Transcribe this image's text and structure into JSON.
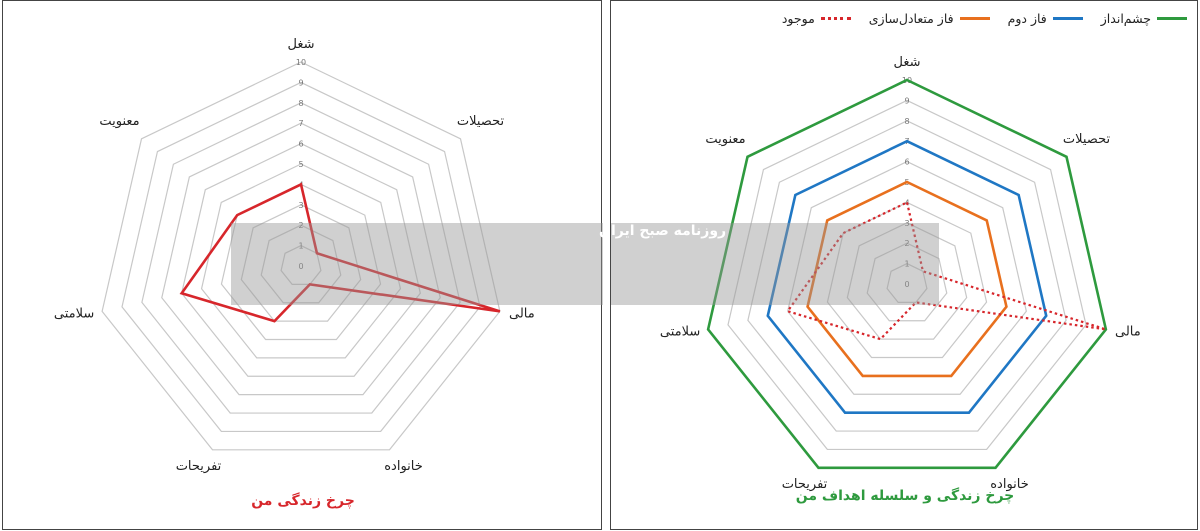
{
  "watermark": {
    "text": "روزنامه صبح ایران"
  },
  "chart_data": [
    {
      "type": "radar",
      "title": "چرخ زندگی من",
      "categories": [
        "شغل",
        "تحصیلات",
        "مالی",
        "خانواده",
        "تفریحات",
        "سلامتی",
        "معنویت"
      ],
      "rlim": [
        0,
        10
      ],
      "ticks": [
        "0",
        "1",
        "2",
        "3",
        "4",
        "5",
        "6",
        "7",
        "8",
        "9",
        "10"
      ],
      "grid": true,
      "series": [
        {
          "values": [
            4,
            1,
            10,
            1,
            3,
            6,
            4
          ],
          "color": "#d7262b"
        }
      ]
    },
    {
      "type": "radar",
      "title": "چرخ زندگی و سلسله اهداف من",
      "categories": [
        "شغل",
        "تحصیلات",
        "مالی",
        "خانواده",
        "تفریحات",
        "سلامتی",
        "معنویت"
      ],
      "rlim": [
        0,
        10
      ],
      "ticks": [
        "0",
        "1",
        "2",
        "3",
        "4",
        "5",
        "6",
        "7",
        "8",
        "9",
        "10"
      ],
      "grid": true,
      "legend_position": "top",
      "series": [
        {
          "name": "چشم‌انداز",
          "values": [
            10,
            10,
            10,
            10,
            10,
            10,
            10
          ],
          "color": "#2e9a3e",
          "dash": "solid"
        },
        {
          "name": "فاز دوم",
          "values": [
            7,
            7,
            7,
            7,
            7,
            7,
            7
          ],
          "color": "#1f77c4",
          "dash": "solid"
        },
        {
          "name": "فاز متعادل‌سازی",
          "values": [
            5,
            5,
            5,
            5,
            5,
            5,
            5
          ],
          "color": "#e8701e",
          "dash": "solid"
        },
        {
          "name": "موجود",
          "values": [
            4,
            1,
            10,
            1,
            3,
            6,
            4
          ],
          "color": "#d7262b",
          "dash": "dotted"
        }
      ]
    }
  ]
}
